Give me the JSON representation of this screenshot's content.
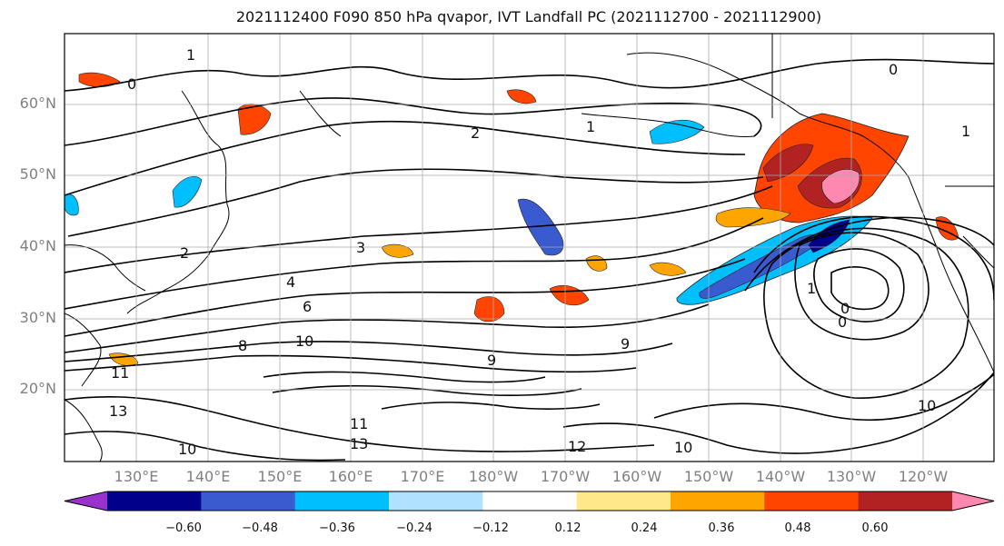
{
  "title": "2021112400 F090 850 hPa qvapor, IVT Landfall PC (2021112700 - 2021112900)",
  "lat_labels": [
    "60°N",
    "50°N",
    "40°N",
    "30°N",
    "20°N"
  ],
  "lon_labels": [
    "130°E",
    "140°E",
    "150°E",
    "160°E",
    "170°E",
    "180°W",
    "170°W",
    "160°W",
    "150°W",
    "140°W",
    "130°W",
    "120°W"
  ],
  "colorbar": {
    "colors": [
      "#9932cc",
      "#00008b",
      "#3a5bd0",
      "#00bfff",
      "#b0e2ff",
      "#ffffff",
      "#ffe88a",
      "#ffa500",
      "#ff4500",
      "#b22222",
      "#ff88b0"
    ],
    "ticks": [
      "−0.60",
      "−0.48",
      "−0.36",
      "−0.24",
      "−0.12",
      "0.12",
      "0.24",
      "0.36",
      "0.48",
      "0.60"
    ]
  },
  "contour_labels": [
    "1",
    "0",
    "1",
    "2",
    "1",
    "0",
    "2",
    "3",
    "4",
    "6",
    "8",
    "10",
    "11",
    "9",
    "9",
    "11",
    "13",
    "12",
    "10",
    "13",
    "10",
    "0",
    "1",
    "0",
    "10"
  ]
}
